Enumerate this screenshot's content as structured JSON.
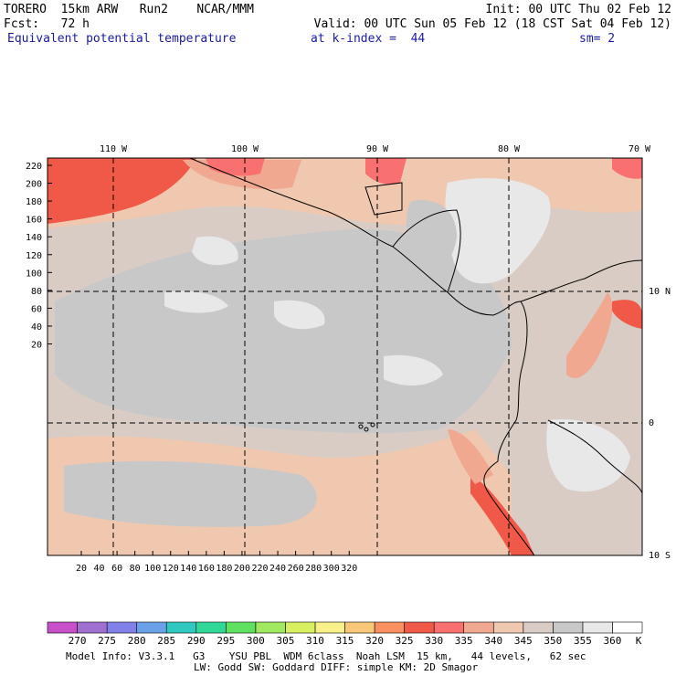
{
  "header": {
    "line1_left": "TORERO  15km ARW   Run2    NCAR/MMM",
    "line1_right": "Init: 00 UTC Thu 02 Feb 12",
    "line2_left": "Fcst:   72 h",
    "line2_right": "Valid: 00 UTC Sun 05 Feb 12 (18 CST Sat 04 Feb 12)",
    "field_name": "Equivalent potential temperature",
    "level": "at k-index =  44",
    "smoothing": "sm= 2"
  },
  "map": {
    "lon_labels_top": [
      "110 W",
      "100 W",
      "90 W",
      "80 W",
      "70 W"
    ],
    "lat_labels_right": [
      "10 N",
      "0",
      "10 S"
    ],
    "y_ticks": [
      "220",
      "200",
      "180",
      "160",
      "140",
      "120",
      "100",
      "80",
      "60",
      "40",
      "20"
    ],
    "x_ticks": [
      "20",
      "40",
      "60",
      "80",
      "100",
      "120",
      "140",
      "160",
      "180",
      "200",
      "220",
      "240",
      "260",
      "280",
      "300",
      "320"
    ]
  },
  "colorbar": {
    "labels": [
      "270",
      "275",
      "280",
      "285",
      "290",
      "295",
      "300",
      "305",
      "310",
      "315",
      "320",
      "325",
      "330",
      "335",
      "340",
      "345",
      "350",
      "355",
      "360"
    ],
    "unit": "K",
    "colors": [
      "#c850c8",
      "#a070d0",
      "#8080e8",
      "#6aa0e8",
      "#30c8c0",
      "#30d898",
      "#60e060",
      "#a0e860",
      "#d8f060",
      "#f8f088",
      "#f8c878",
      "#f89060",
      "#f05848",
      "#f87070",
      "#f0a890",
      "#f0c8b0",
      "#d8ccc4",
      "#c8c8c8",
      "#e8e8e8",
      "#ffffff"
    ]
  },
  "footer": {
    "line1": "Model Info: V3.3.1   G3    YSU PBL  WDM 6class  Noah LSM  15 km,   44 levels,   62 sec",
    "line2": "LW: Godd SW: Goddard DIFF: simple KM: 2D Smagor"
  }
}
